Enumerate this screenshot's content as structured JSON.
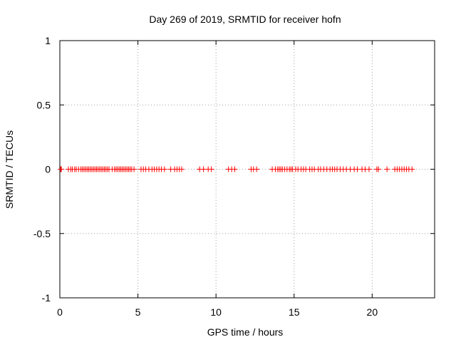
{
  "chart_data": {
    "type": "scatter",
    "title": "Day 269 of 2019, SRMTID for receiver hofn",
    "xlabel": "GPS time / hours",
    "ylabel": "SRMTID / TECUs",
    "xlim": [
      0,
      24
    ],
    "ylim": [
      -1,
      1
    ],
    "x_ticks": [
      0,
      5,
      10,
      15,
      20
    ],
    "x_tick_labels": [
      "0",
      "5",
      "10",
      "15",
      "20"
    ],
    "y_ticks": [
      -1,
      -0.5,
      0,
      0.5,
      1
    ],
    "y_tick_labels": [
      "-1",
      "-0.5",
      "0",
      "0.5",
      "1"
    ],
    "grid": true,
    "marker": "+",
    "colors": {
      "points": "#ff0000",
      "grid": "#a0a0a0",
      "axes": "#000000"
    },
    "series": [
      {
        "name": "SRMTID",
        "x": [
          0.05,
          0.1,
          0.55,
          0.7,
          0.8,
          0.95,
          1.05,
          1.2,
          1.35,
          1.45,
          1.55,
          1.65,
          1.75,
          1.85,
          1.95,
          2.05,
          2.15,
          2.25,
          2.35,
          2.45,
          2.55,
          2.65,
          2.75,
          2.85,
          2.95,
          3.05,
          3.15,
          3.35,
          3.5,
          3.6,
          3.7,
          3.8,
          3.9,
          4.0,
          4.1,
          4.2,
          4.3,
          4.4,
          4.5,
          4.6,
          4.75,
          5.2,
          5.35,
          5.5,
          5.7,
          5.9,
          6.05,
          6.2,
          6.35,
          6.5,
          6.7,
          7.1,
          7.35,
          7.5,
          7.65,
          7.8,
          8.95,
          9.2,
          9.5,
          9.7,
          10.8,
          11.0,
          11.2,
          12.25,
          12.4,
          12.6,
          13.6,
          13.8,
          13.95,
          14.05,
          14.15,
          14.25,
          14.4,
          14.55,
          14.7,
          14.8,
          14.9,
          15.1,
          15.25,
          15.45,
          15.6,
          15.75,
          16.0,
          16.15,
          16.3,
          16.55,
          16.7,
          16.9,
          17.1,
          17.3,
          17.45,
          17.6,
          17.75,
          17.95,
          18.15,
          18.35,
          18.6,
          18.85,
          19.05,
          19.35,
          19.55,
          19.8,
          20.3,
          20.4,
          20.95,
          21.45,
          21.6,
          21.75,
          21.9,
          22.05,
          22.2,
          22.35,
          22.55
        ],
        "y": [
          0,
          0,
          0,
          0,
          0,
          0,
          0,
          0,
          0,
          0,
          0,
          0,
          0,
          0,
          0,
          0,
          0,
          0,
          0,
          0,
          0,
          0,
          0,
          0,
          0,
          0,
          0,
          0,
          0,
          0,
          0,
          0,
          0,
          0,
          0,
          0,
          0,
          0,
          0,
          0,
          0,
          0,
          0,
          0,
          0,
          0,
          0,
          0,
          0,
          0,
          0,
          0,
          0,
          0,
          0,
          0,
          0,
          0,
          0,
          0,
          0,
          0,
          0,
          0,
          0,
          0,
          0,
          0,
          0,
          0,
          0,
          0,
          0,
          0,
          0,
          0,
          0,
          0,
          0,
          0,
          0,
          0,
          0,
          0,
          0,
          0,
          0,
          0,
          0,
          0,
          0,
          0,
          0,
          0,
          0,
          0,
          0,
          0,
          0,
          0,
          0,
          0,
          0,
          0,
          0,
          0,
          0,
          0,
          0,
          0,
          0,
          0,
          0
        ]
      }
    ]
  }
}
